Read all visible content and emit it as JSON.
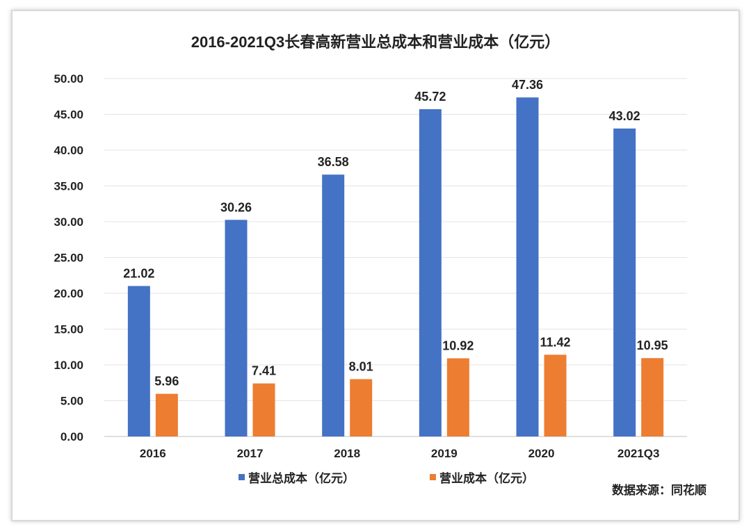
{
  "chart_data": {
    "type": "bar",
    "title": "2016-2021Q3长春高新营业总成本和营业成本（亿元）",
    "categories": [
      "2016",
      "2017",
      "2018",
      "2019",
      "2020",
      "2021Q3"
    ],
    "series": [
      {
        "name": "营业总成本（亿元）",
        "color": "#4472C4",
        "values": [
          21.02,
          30.26,
          36.58,
          45.72,
          47.36,
          43.02
        ]
      },
      {
        "name": "营业成本（亿元）",
        "color": "#ED7D31",
        "values": [
          5.96,
          7.41,
          8.01,
          10.92,
          11.42,
          10.95
        ]
      }
    ],
    "ylim": [
      0,
      50
    ],
    "yticks": [
      "0.00",
      "5.00",
      "10.00",
      "15.00",
      "20.00",
      "25.00",
      "30.00",
      "35.00",
      "40.00",
      "45.00",
      "50.00"
    ],
    "xlabel": "",
    "ylabel": "",
    "grid": true,
    "legend": "bottom",
    "source": "数据来源：同花顺"
  }
}
